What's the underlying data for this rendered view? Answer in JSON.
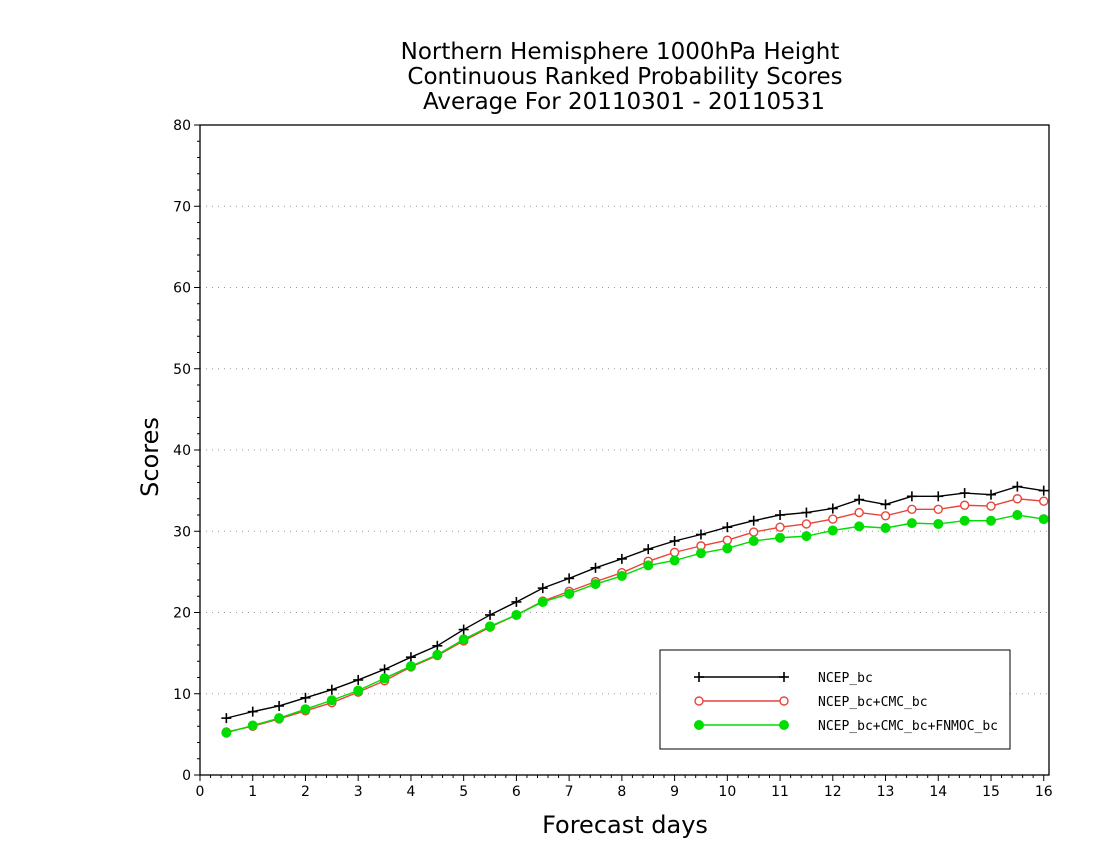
{
  "chart_data": {
    "type": "line",
    "title": [
      "Northern Hemisphere 1000hPa Height",
      "Continuous Ranked Probability Scores",
      "Average For 20110301 - 20110531"
    ],
    "xlabel": "Forecast days",
    "ylabel": "Scores",
    "xlim": [
      0,
      16.1
    ],
    "ylim": [
      0,
      80
    ],
    "xticks": [
      "0",
      "1",
      "2",
      "3",
      "4",
      "5",
      "6",
      "7",
      "8",
      "9",
      "10",
      "11",
      "12",
      "13",
      "14",
      "15",
      "16"
    ],
    "yticks": [
      "0",
      "10",
      "20",
      "30",
      "40",
      "50",
      "60",
      "70",
      "80"
    ],
    "grid": "horizontal dotted",
    "legend_position": "bottom-right",
    "x": [
      0.5,
      1,
      1.5,
      2,
      2.5,
      3,
      3.5,
      4,
      4.5,
      5,
      5.5,
      6,
      6.5,
      7,
      7.5,
      8,
      8.5,
      9,
      9.5,
      10,
      10.5,
      11,
      11.5,
      12,
      12.5,
      13,
      13.5,
      14,
      14.5,
      15,
      15.5,
      16
    ],
    "series": [
      {
        "name": "NCEP_bc",
        "color": "#000000",
        "marker": "plus",
        "values": [
          7.0,
          7.8,
          8.5,
          9.5,
          10.5,
          11.7,
          13.0,
          14.5,
          15.9,
          17.9,
          19.7,
          21.3,
          23.0,
          24.2,
          25.5,
          26.6,
          27.8,
          28.8,
          29.6,
          30.5,
          31.3,
          32.0,
          32.3,
          32.8,
          33.9,
          33.3,
          34.3,
          34.3,
          34.7,
          34.5,
          35.5,
          35.0
        ]
      },
      {
        "name": "NCEP_bc+CMC_bc",
        "color": "#e8443a",
        "marker": "open-circle",
        "values": [
          5.3,
          6.0,
          6.9,
          7.9,
          8.9,
          10.2,
          11.6,
          13.3,
          14.7,
          16.5,
          18.2,
          19.7,
          21.4,
          22.6,
          23.8,
          24.9,
          26.3,
          27.4,
          28.2,
          28.9,
          29.9,
          30.5,
          30.9,
          31.5,
          32.3,
          31.9,
          32.7,
          32.7,
          33.2,
          33.1,
          34.0,
          33.7
        ]
      },
      {
        "name": "NCEP_bc+CMC_bc+FNMOC_bc",
        "color": "#00dd00",
        "marker": "filled-circle",
        "values": [
          5.2,
          6.1,
          7.0,
          8.1,
          9.2,
          10.4,
          11.9,
          13.4,
          14.8,
          16.7,
          18.3,
          19.7,
          21.3,
          22.3,
          23.5,
          24.5,
          25.8,
          26.4,
          27.3,
          27.9,
          28.8,
          29.2,
          29.4,
          30.1,
          30.6,
          30.4,
          31.0,
          30.9,
          31.3,
          31.3,
          32.0,
          31.5
        ]
      }
    ]
  }
}
